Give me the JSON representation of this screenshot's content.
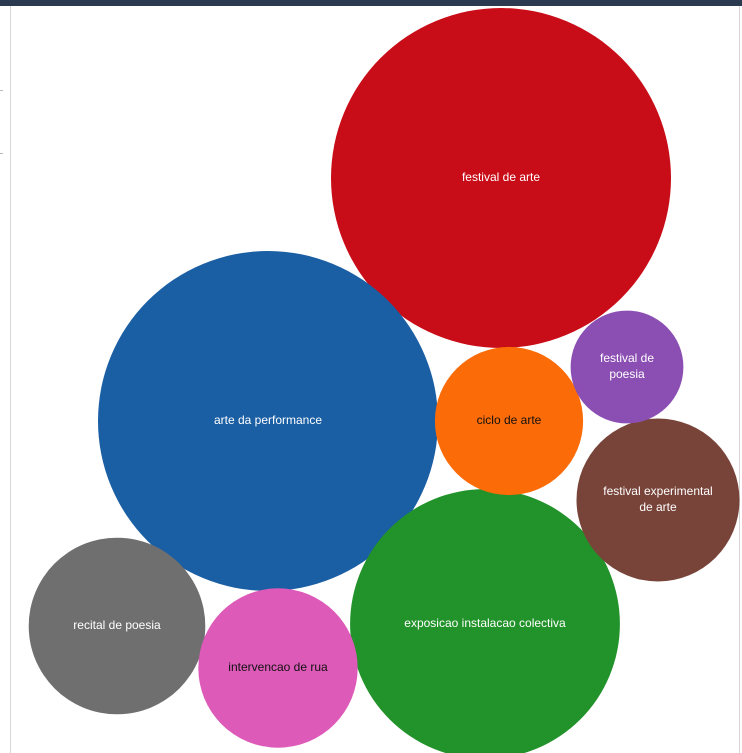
{
  "chart_data": {
    "type": "bubble",
    "title": "",
    "nodes": [
      {
        "label": "festival de arte",
        "lines": [
          "festival de arte"
        ],
        "value": 100,
        "color": "#c90d18",
        "text_color": "#ffffff"
      },
      {
        "label": "arte da performance",
        "lines": [
          "arte da performance"
        ],
        "value": 100,
        "color": "#1a5ea4",
        "text_color": "#ffffff"
      },
      {
        "label": "exposicao instalacao colectiva",
        "lines": [
          "exposicao instalacao colectiva"
        ],
        "value": 63,
        "color": "#22922a",
        "text_color": "#ffffff"
      },
      {
        "label": "recital de poesia",
        "lines": [
          "recital de poesia"
        ],
        "value": 27,
        "color": "#6f6f6f",
        "text_color": "#ffffff"
      },
      {
        "label": "festival experimental de arte",
        "lines": [
          "festival experimental",
          "de arte"
        ],
        "value": 23,
        "color": "#78443a",
        "text_color": "#ffffff"
      },
      {
        "label": "intervencao de rua",
        "lines": [
          "intervencao de rua"
        ],
        "value": 22,
        "color": "#dd5ab8",
        "text_color": "#111111"
      },
      {
        "label": "ciclo de arte",
        "lines": [
          "ciclo de arte"
        ],
        "value": 19,
        "color": "#fb6b08",
        "text_color": "#111111"
      },
      {
        "label": "festival de poesia",
        "lines": [
          "festival de",
          "poesia"
        ],
        "value": 11,
        "color": "#8b4fb3",
        "text_color": "#ffffff"
      }
    ]
  }
}
